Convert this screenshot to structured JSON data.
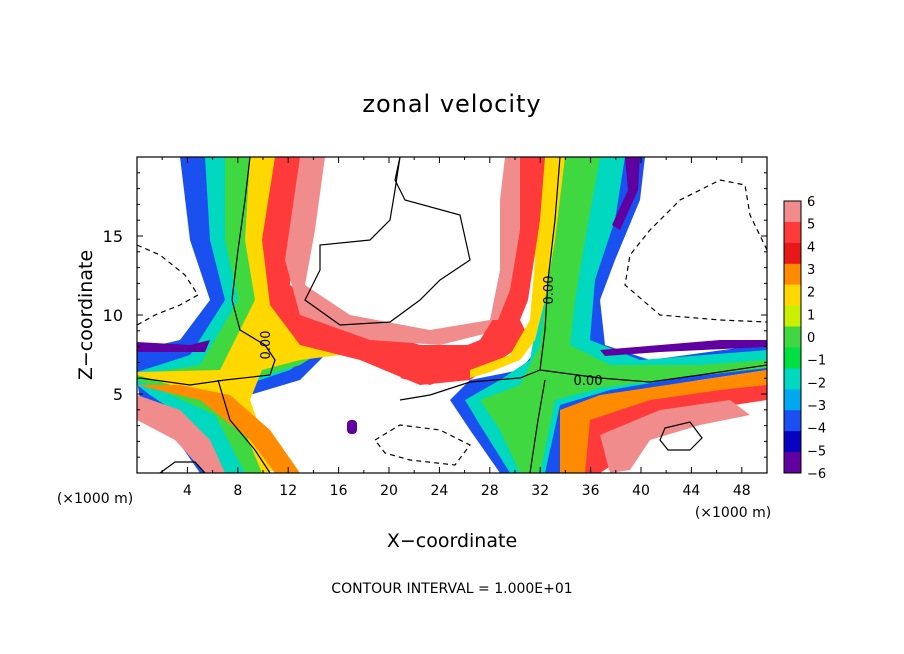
{
  "chart_data": {
    "type": "heatmap",
    "title": "zonal velocity",
    "xlabel": "X−coordinate",
    "ylabel": "Z−coordinate",
    "x_unit_label": "(×1000 m)",
    "x_unit_label_right": "(×1000 m)",
    "xlim": [
      0,
      50
    ],
    "ylim": [
      0,
      20
    ],
    "x_ticks": [
      4,
      8,
      12,
      16,
      20,
      24,
      28,
      32,
      36,
      40,
      44,
      48
    ],
    "y_ticks": [
      5,
      10,
      15
    ],
    "x_tick_labels": [
      "4",
      "8",
      "12",
      "16",
      "20",
      "24",
      "28",
      "32",
      "36",
      "40",
      "44",
      "48"
    ],
    "y_tick_labels": [
      "5",
      "10",
      "15"
    ],
    "colorbar": {
      "levels": [
        6,
        5,
        4,
        3,
        2,
        1,
        0,
        -1,
        -2,
        -3,
        -4,
        -5,
        -6
      ],
      "labels": [
        "6",
        "5",
        "4",
        "3",
        "2",
        "1",
        "0",
        "−1",
        "−2",
        "−3",
        "−4",
        "−5",
        "−6"
      ],
      "colors": [
        "#f08c8c",
        "#ff3a3a",
        "#e81818",
        "#ff8c00",
        "#ffd800",
        "#c8f000",
        "#40d840",
        "#00e040",
        "#00d8c0",
        "#00a8f0",
        "#1a50f0",
        "#0a00c0",
        "#6000a0"
      ]
    },
    "contour_labels": [
      "0.00",
      "0.00",
      "0.00"
    ],
    "footer": "CONTOUR INTERVAL = 1.000E+01",
    "grid": false
  }
}
